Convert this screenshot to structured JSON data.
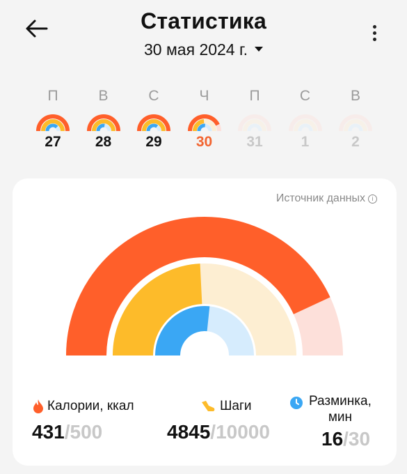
{
  "header": {
    "title": "Статистика",
    "date": "30 мая 2024 г."
  },
  "week": [
    {
      "weekday": "П",
      "day": "27",
      "state": "past",
      "calories": 1.0,
      "steps": 1.0,
      "warmup": 0.75
    },
    {
      "weekday": "В",
      "day": "28",
      "state": "past",
      "calories": 1.0,
      "steps": 1.0,
      "warmup": 0.55
    },
    {
      "weekday": "С",
      "day": "29",
      "state": "past",
      "calories": 1.0,
      "steps": 1.0,
      "warmup": 0.7
    },
    {
      "weekday": "Ч",
      "day": "30",
      "state": "current",
      "calories": 0.86,
      "steps": 0.48,
      "warmup": 0.53
    },
    {
      "weekday": "П",
      "day": "31",
      "state": "future",
      "calories": 0,
      "steps": 0,
      "warmup": 0
    },
    {
      "weekday": "С",
      "day": "1",
      "state": "future",
      "calories": 0,
      "steps": 0,
      "warmup": 0
    },
    {
      "weekday": "В",
      "day": "2",
      "state": "future",
      "calories": 0,
      "steps": 0,
      "warmup": 0
    }
  ],
  "card": {
    "source_label": "Источник данных"
  },
  "colors": {
    "calories": "#ff5f2a",
    "calories_track": "#fde0da",
    "steps": "#fdbb2a",
    "steps_track": "#fdeed2",
    "warmup": "#3aa7f4",
    "warmup_track": "#d6ecfd"
  },
  "stats": {
    "calories": {
      "label": "Калории, ккал",
      "value": "431",
      "goal": "/500",
      "progress": 0.862
    },
    "steps": {
      "label": "Шаги",
      "value": "4845",
      "goal": "/10000",
      "progress": 0.4845
    },
    "warmup": {
      "label_line1": "Разминка,",
      "label_line2": "мин",
      "value": "16",
      "goal": "/30",
      "progress": 0.533
    }
  }
}
